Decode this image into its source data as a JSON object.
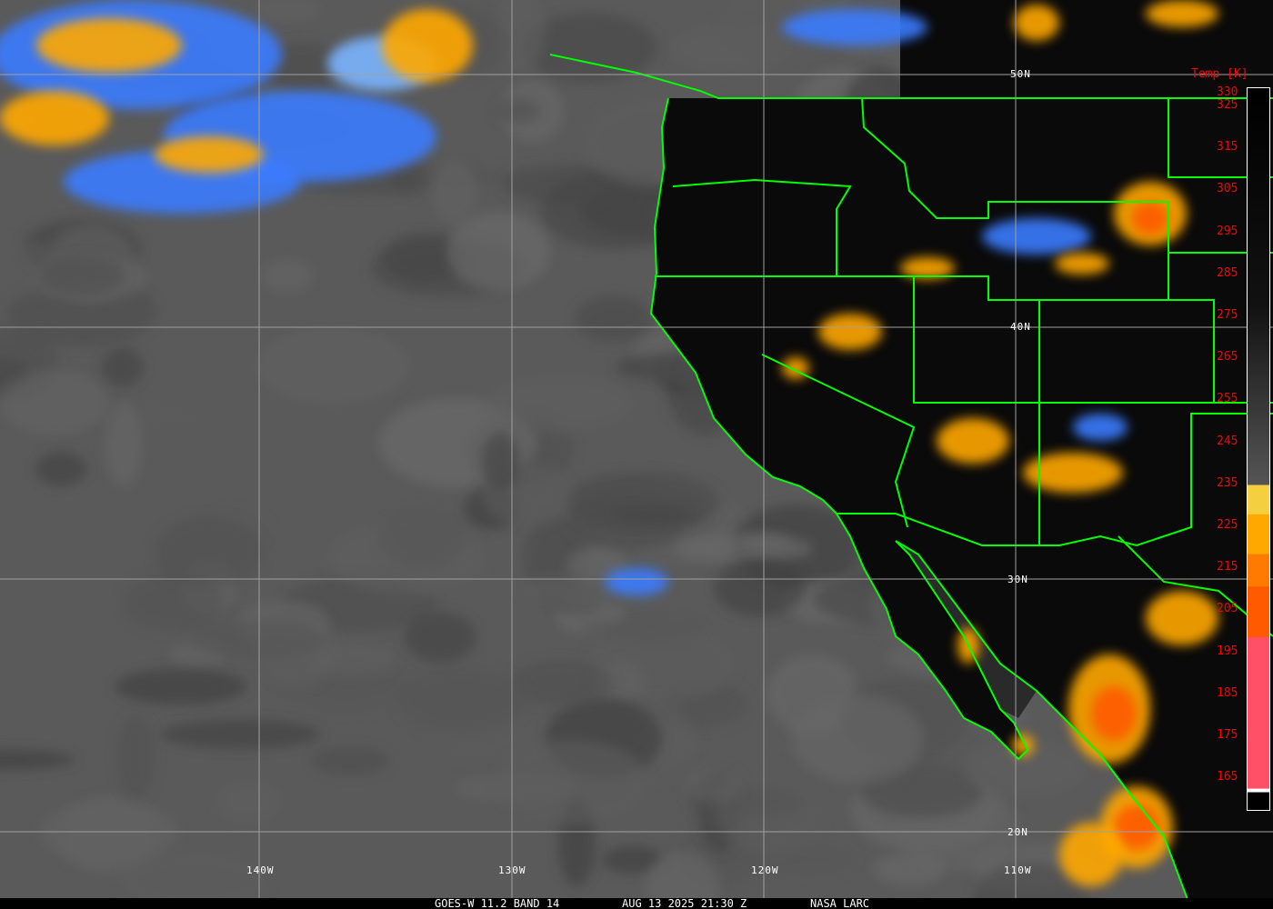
{
  "caption": {
    "product": "GOES-W 11.2 BAND 14",
    "datetime": "AUG 13 2025 21:30 Z",
    "source": "NASA LARC"
  },
  "grid": {
    "longitudes": [
      "140W",
      "130W",
      "120W",
      "110W"
    ],
    "latitudes": [
      "50N",
      "40N",
      "30N",
      "20N"
    ]
  },
  "colorbar": {
    "title": "Temp [K]",
    "ticks": [
      "330",
      "325",
      "315",
      "305",
      "295",
      "285",
      "275",
      "265",
      "255",
      "245",
      "235",
      "225",
      "215",
      "205",
      "195",
      "185",
      "175",
      "165"
    ],
    "colors": {
      "warm": "#000000",
      "cold_gray": "#a8a8a8",
      "blue": "#3a7cff",
      "light_blue": "#7ab4ff",
      "cyan": "#b8f4ff",
      "pale_yellow": "#fffac0",
      "yellow": "#f4d040",
      "orange": "#ffa800",
      "dark_orange": "#ff7a00",
      "red_orange": "#ff5a00",
      "pink": "#ff5068"
    }
  },
  "colors": {
    "borders": "#00ff00",
    "gridlines": "#a0a0a0"
  }
}
